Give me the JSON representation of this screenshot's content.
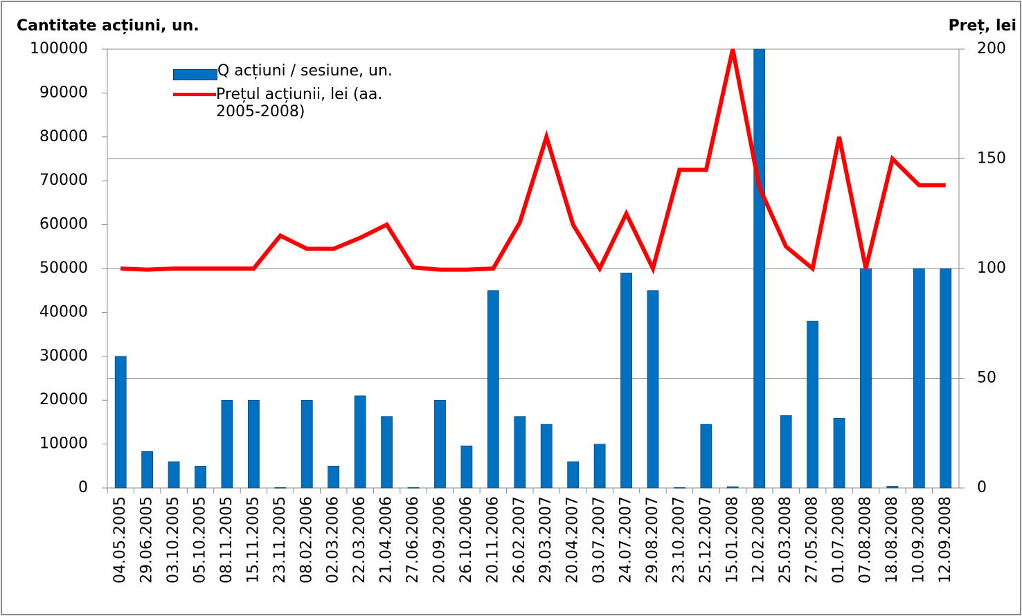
{
  "chart_data": {
    "type": "bar_line",
    "y_label": "Cantitate acțiuni, un.",
    "y2_label": "Preț, lei",
    "categories": [
      "04.05.2005",
      "29.06.2005",
      "03.10.2005",
      "05.10.2005",
      "08.11.2005",
      "15.11.2005",
      "23.11.2005",
      "08.02.2006",
      "02.03.2006",
      "22.03.2006",
      "21.04.2006",
      "27.06.2006",
      "20.09.2006",
      "26.10.2006",
      "20.11.2006",
      "26.02.2007",
      "29.03.2007",
      "20.04.2007",
      "03.07.2007",
      "24.07.2007",
      "29.08.2007",
      "23.10.2007",
      "25.12.2007",
      "15.01.2008",
      "12.02.2008",
      "25.03.2008",
      "27.05.2008",
      "01.07.2008",
      "07.08.2008",
      "18.08.2008",
      "10.09.2008",
      "12.09.2008"
    ],
    "series": [
      {
        "name": "Q acțiuni / sesiune, un.",
        "type": "bar",
        "color": "#0070c0",
        "values": [
          30000,
          8300,
          6000,
          5000,
          20000,
          20000,
          100,
          20000,
          5000,
          21000,
          16300,
          100,
          20000,
          9600,
          45000,
          16300,
          14500,
          6000,
          10000,
          49000,
          45000,
          100,
          14500,
          300,
          100000,
          16500,
          38000,
          15900,
          50000,
          400,
          50000,
          50000
        ]
      },
      {
        "name": "Prețul acțiunii, lei (aa. 2005-2008)",
        "type": "line",
        "axis": "y2",
        "color": "#ff0000",
        "values": [
          100,
          99.5,
          100,
          100,
          100,
          100,
          115,
          109,
          109,
          114,
          120,
          100.5,
          99.5,
          99.5,
          100,
          121,
          160,
          120,
          100,
          125,
          100,
          145,
          145,
          200,
          137,
          110,
          100,
          160,
          100,
          150,
          138,
          138
        ]
      }
    ],
    "ylim": [
      0,
      100000
    ],
    "yticks": [
      0,
      10000,
      20000,
      30000,
      40000,
      50000,
      60000,
      70000,
      80000,
      90000,
      100000
    ],
    "y2lim": [
      0,
      200
    ],
    "y2ticks": [
      0,
      50,
      100,
      150,
      200
    ],
    "grid": true,
    "legend": "top-left"
  }
}
